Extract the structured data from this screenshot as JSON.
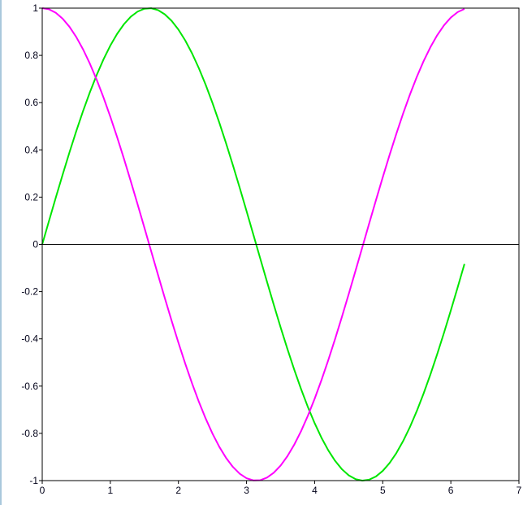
{
  "chart_data": {
    "type": "line",
    "title": "",
    "xlabel": "",
    "ylabel": "",
    "xlim": [
      0,
      7
    ],
    "ylim": [
      -1,
      1
    ],
    "grid": false,
    "xticks": [
      "0",
      "1",
      "2",
      "3",
      "4",
      "5",
      "6",
      "7"
    ],
    "yticks": [
      "1",
      "0.8",
      "0.6",
      "0.4",
      "0.2",
      "0",
      "-0.2",
      "-0.4",
      "-0.6",
      "-0.8",
      "-1"
    ],
    "zero_line": true,
    "x": [
      0,
      0.1,
      0.2,
      0.3,
      0.4,
      0.5,
      0.6,
      0.7,
      0.8,
      0.9,
      1.0,
      1.1,
      1.2,
      1.3,
      1.4,
      1.5,
      1.6,
      1.7,
      1.8,
      1.9,
      2.0,
      2.1,
      2.2,
      2.3,
      2.4,
      2.5,
      2.6,
      2.7,
      2.8,
      2.9,
      3.0,
      3.1,
      3.2,
      3.3,
      3.4,
      3.5,
      3.6,
      3.7,
      3.8,
      3.9,
      4.0,
      4.1,
      4.2,
      4.3,
      4.4,
      4.5,
      4.6,
      4.7,
      4.8,
      4.9,
      5.0,
      5.1,
      5.2,
      5.3,
      5.4,
      5.5,
      5.6,
      5.7,
      5.8,
      5.9,
      6.0,
      6.1,
      6.2
    ],
    "series": [
      {
        "color": "#00e600",
        "values": [
          0,
          0.0998,
          0.1987,
          0.2955,
          0.3894,
          0.4794,
          0.5646,
          0.6442,
          0.7174,
          0.7833,
          0.8415,
          0.8912,
          0.932,
          0.9636,
          0.9854,
          0.9975,
          0.9996,
          0.9917,
          0.9738,
          0.9463,
          0.9093,
          0.8632,
          0.8085,
          0.7457,
          0.6755,
          0.5985,
          0.5155,
          0.4274,
          0.335,
          0.2392,
          0.1411,
          0.0416,
          -0.0584,
          -0.1577,
          -0.2555,
          -0.3508,
          -0.4425,
          -0.5298,
          -0.6119,
          -0.6878,
          -0.7568,
          -0.8183,
          -0.8716,
          -0.9162,
          -0.9516,
          -0.9775,
          -0.9937,
          -0.9999,
          -0.9962,
          -0.9825,
          -0.9589,
          -0.9258,
          -0.8835,
          -0.8323,
          -0.7728,
          -0.7055,
          -0.6313,
          -0.5507,
          -0.4646,
          -0.3739,
          -0.2794,
          -0.1822,
          -0.0831
        ]
      },
      {
        "color": "#ff00ff",
        "values": [
          1,
          0.995,
          0.9801,
          0.9553,
          0.9211,
          0.8776,
          0.8253,
          0.7648,
          0.6967,
          0.6216,
          0.5403,
          0.4536,
          0.3624,
          0.2675,
          0.17,
          0.0707,
          -0.0292,
          -0.1288,
          -0.2272,
          -0.3233,
          -0.4161,
          -0.5048,
          -0.5885,
          -0.6663,
          -0.7374,
          -0.8011,
          -0.8569,
          -0.9041,
          -0.9422,
          -0.971,
          -0.99,
          -0.9991,
          -0.9983,
          -0.9875,
          -0.9668,
          -0.9365,
          -0.8968,
          -0.8481,
          -0.791,
          -0.7259,
          -0.6536,
          -0.5748,
          -0.4903,
          -0.4008,
          -0.3073,
          -0.2108,
          -0.1122,
          -0.0124,
          0.0875,
          0.1865,
          0.2837,
          0.378,
          0.4685,
          0.5544,
          0.6347,
          0.7087,
          0.7756,
          0.8347,
          0.8855,
          0.9275,
          0.9602,
          0.9833,
          0.9965
        ]
      }
    ]
  }
}
